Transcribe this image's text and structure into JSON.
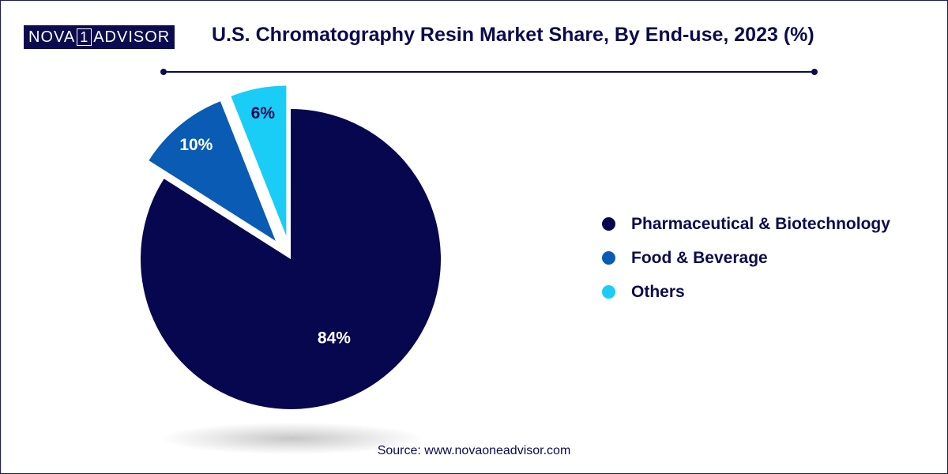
{
  "brand": {
    "logo_left": "NOVA",
    "logo_mid": "1",
    "logo_right": "ADVISOR"
  },
  "header": {
    "title": "U.S. Chromatography Resin Market Share, By End-use, 2023 (%)"
  },
  "footer": {
    "source": "Source: www.novaoneadvisor.com"
  },
  "chart_data": {
    "type": "pie",
    "title": "U.S. Chromatography Resin Market Share, By End-use, 2023 (%)",
    "slices": [
      {
        "label": "Pharmaceutical & Biotechnology",
        "value": 84,
        "display": "84%",
        "color": "#07074f",
        "exploded": false
      },
      {
        "label": "Food & Beverage",
        "value": 10,
        "display": "10%",
        "color": "#0a5bb3",
        "exploded": true
      },
      {
        "label": "Others",
        "value": 6,
        "display": "6%",
        "color": "#19cdf7",
        "exploded": true
      }
    ],
    "start_angle": "12 o'clock",
    "direction": "clockwise",
    "legend_position": "right"
  }
}
